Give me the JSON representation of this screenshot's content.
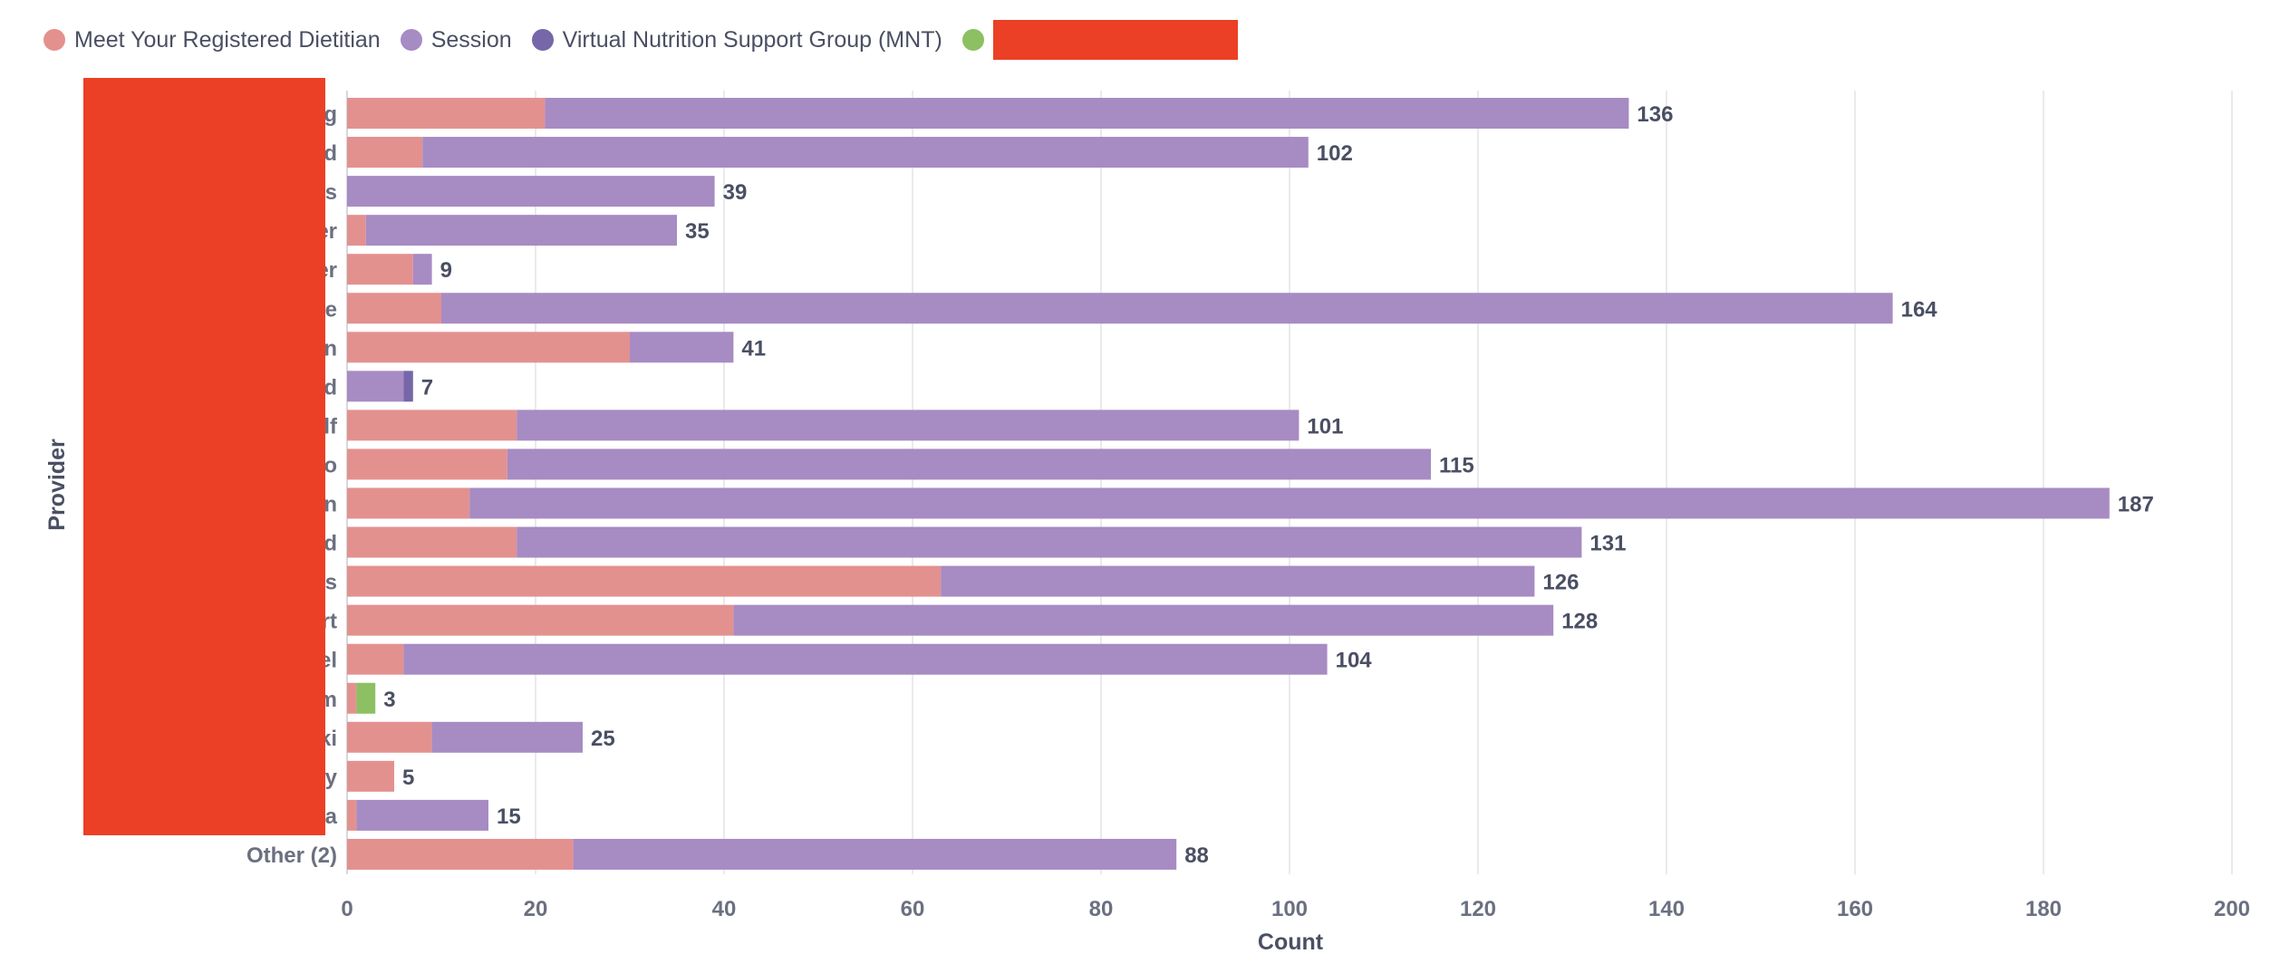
{
  "chart_data": {
    "type": "bar",
    "orientation": "horizontal",
    "stacked": true,
    "categories": [
      "g",
      "d",
      "s",
      "er",
      "er",
      "e",
      "n",
      "d",
      "lf",
      "o",
      "n",
      "d",
      "s",
      "rt",
      "el",
      "m",
      "ki",
      "y",
      "a",
      "Other (2)"
    ],
    "series": [
      {
        "name": "Meet Your Registered Dietitian",
        "color": "#e3918f",
        "values": [
          21,
          8,
          0,
          2,
          7,
          10,
          30,
          0,
          18,
          17,
          13,
          18,
          63,
          41,
          6,
          1,
          9,
          5,
          1,
          24
        ]
      },
      {
        "name": "Session",
        "color": "#a78bc3",
        "values": [
          115,
          94,
          39,
          33,
          2,
          154,
          11,
          6,
          83,
          98,
          174,
          113,
          63,
          87,
          98,
          0,
          16,
          0,
          14,
          64
        ]
      },
      {
        "name": "Virtual Nutrition Support Group (MNT)",
        "color": "#7567a8",
        "values": [
          0,
          0,
          0,
          0,
          0,
          0,
          0,
          1,
          0,
          0,
          0,
          0,
          0,
          0,
          0,
          0,
          0,
          0,
          0,
          0
        ]
      },
      {
        "name": "",
        "color": "#8cc063",
        "values": [
          0,
          0,
          0,
          0,
          0,
          0,
          0,
          0,
          0,
          0,
          0,
          0,
          0,
          0,
          0,
          2,
          0,
          0,
          0,
          0
        ]
      }
    ],
    "totals": [
      "136",
      "102",
      "39",
      "35",
      "9",
      "164",
      "41",
      "7",
      "101",
      "115",
      "187",
      "131",
      "126",
      "128",
      "104",
      "3",
      "25",
      "5",
      "15",
      "88"
    ],
    "xlabel": "Count",
    "ylabel": "Provider",
    "xlim": [
      0,
      200
    ],
    "xticks": [
      "0",
      "20",
      "40",
      "60",
      "80",
      "100",
      "120",
      "140",
      "160",
      "180",
      "200"
    ],
    "grid": true,
    "legend_position": "top-left"
  }
}
